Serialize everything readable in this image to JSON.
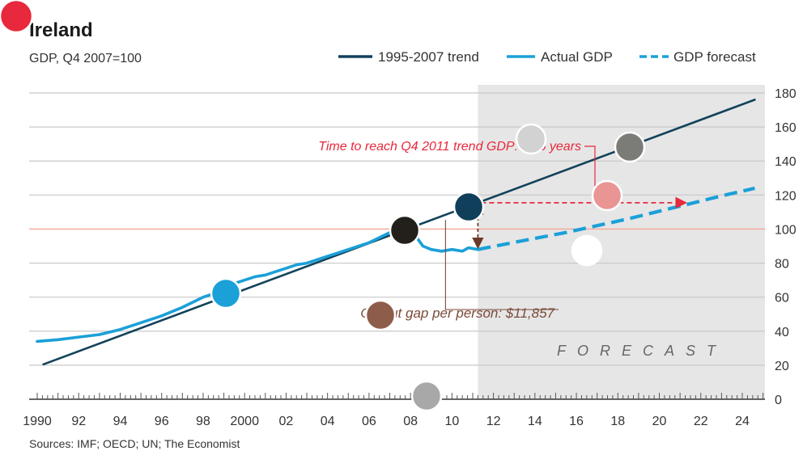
{
  "chart_data": {
    "type": "line",
    "title": "Ireland",
    "subtitle": "GDP, Q4 2007=100",
    "xlabel": "",
    "ylabel": "",
    "xlim": [
      1990,
      2025
    ],
    "ylim": [
      0,
      180
    ],
    "y_ticks": [
      0,
      20,
      40,
      60,
      80,
      100,
      120,
      140,
      160,
      180
    ],
    "x_ticks": [
      {
        "value": 1990,
        "label": "1990"
      },
      {
        "value": 1992,
        "label": "92"
      },
      {
        "value": 1994,
        "label": "94"
      },
      {
        "value": 1996,
        "label": "96"
      },
      {
        "value": 1998,
        "label": "98"
      },
      {
        "value": 2000,
        "label": "2000"
      },
      {
        "value": 2002,
        "label": "02"
      },
      {
        "value": 2004,
        "label": "04"
      },
      {
        "value": 2006,
        "label": "06"
      },
      {
        "value": 2008,
        "label": "08"
      },
      {
        "value": 2010,
        "label": "10"
      },
      {
        "value": 2012,
        "label": "12"
      },
      {
        "value": 2014,
        "label": "14"
      },
      {
        "value": 2016,
        "label": "16"
      },
      {
        "value": 2018,
        "label": "18"
      },
      {
        "value": 2020,
        "label": "20"
      },
      {
        "value": 2022,
        "label": "22"
      },
      {
        "value": 2024,
        "label": "24"
      }
    ],
    "grid": true,
    "legend_position": "top-right",
    "reference_line": {
      "y": 100,
      "color": "#f4a99a"
    },
    "forecast_region": {
      "x_start": 2011.25,
      "x_end": 2025,
      "label": "FORECAST",
      "color": "#e6e6e6"
    },
    "series": [
      {
        "name": "1995-2007 trend",
        "color": "#12425a",
        "style": "solid",
        "x": [
          1990.3,
          2024.6
        ],
        "y": [
          20.5,
          176
        ]
      },
      {
        "name": "Actual GDP",
        "color": "#1ba0d8",
        "style": "solid",
        "x": [
          1990.0,
          1991.0,
          1992.0,
          1993.0,
          1994.0,
          1995.0,
          1996.0,
          1997.0,
          1997.5,
          1998.0,
          1998.5,
          1999.0,
          1999.5,
          2000.0,
          2000.5,
          2001.0,
          2001.5,
          2002.0,
          2002.5,
          2003.0,
          2003.5,
          2004.0,
          2004.5,
          2005.0,
          2005.5,
          2006.0,
          2006.5,
          2007.0,
          2007.5,
          2007.9,
          2008.3,
          2008.6,
          2009.0,
          2009.5,
          2010.0,
          2010.5,
          2010.8,
          2011.25
        ],
        "y": [
          34,
          35,
          36.5,
          38,
          41,
          45,
          49,
          54,
          57,
          60,
          62,
          65,
          68,
          70,
          72,
          73,
          75,
          77,
          79,
          80,
          82,
          84,
          86,
          88,
          90,
          92,
          95,
          98,
          99,
          100,
          95,
          90,
          88,
          87,
          88,
          87,
          89,
          88
        ]
      },
      {
        "name": "GDP forecast",
        "color": "#1ba0d8",
        "style": "dashed",
        "x": [
          2011.25,
          2012.5,
          2014.0,
          2015.5,
          2017.0,
          2018.5,
          2020.0,
          2021.5,
          2023.0,
          2024.6
        ],
        "y": [
          88,
          91,
          94.5,
          98,
          102,
          106,
          110.5,
          115,
          119.5,
          124
        ]
      }
    ],
    "annotations": [
      {
        "text": "Time to reach Q4 2011 trend GDP: 11.5 years",
        "color": "#e8283c"
      },
      {
        "text": "Output gap per person: $11,857",
        "color": "#7a4a3a"
      }
    ],
    "source": "Sources: IMF; OECD; UN; The Economist"
  },
  "markers": [
    {
      "name": "red-corner-marker",
      "color": "#e8283c"
    },
    {
      "name": "blue-marker",
      "color": "#1ba0d8"
    },
    {
      "name": "black-marker",
      "color": "#231f1a"
    },
    {
      "name": "navy-marker",
      "color": "#0f3f5a"
    },
    {
      "name": "light-gray-marker",
      "color": "#d2d2d2"
    },
    {
      "name": "dark-gray-marker",
      "color": "#7b7b78"
    },
    {
      "name": "pink-marker",
      "color": "#e99594"
    },
    {
      "name": "white-marker",
      "color": "#ffffff"
    },
    {
      "name": "brown-marker",
      "color": "#8e5c4b"
    },
    {
      "name": "gray-marker",
      "color": "#a8a8a8"
    }
  ]
}
